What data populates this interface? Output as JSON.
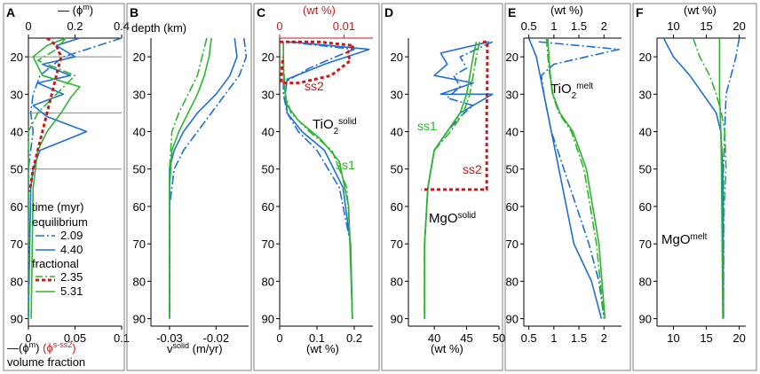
{
  "figure": {
    "panel_letters": [
      "A",
      "B",
      "C",
      "D",
      "E",
      "F"
    ],
    "depth_label": "depth (km)",
    "legend": {
      "title": "time (myr)",
      "group1": "equilibrium",
      "group2": "fractional",
      "entries": [
        "2.09",
        "4.40",
        "2.35",
        "5.31"
      ]
    },
    "annotations": {
      "ss1": "ss1",
      "ss2": "ss2",
      "tio2_base": "TiO",
      "sub2": "2",
      "solid_sup": "solid",
      "mgo_base": "MgO",
      "melt_sup": "melt"
    },
    "colors": {
      "blue": "#1f6fd4",
      "green": "#2db52d",
      "red": "#c8191b",
      "grey": "#888888"
    }
  },
  "chart_data": [
    {
      "panel": "A",
      "type": "line",
      "ylabel": "depth (km)",
      "ylim": [
        15,
        92
      ],
      "yticks": [
        20,
        30,
        40,
        50,
        60,
        70,
        80,
        90
      ],
      "bottom_axis": {
        "lim": [
          0,
          0.1
        ],
        "ticks": [
          0,
          0.05,
          0.1
        ],
        "tick_labels": [
          "0",
          "0.05",
          "0.1"
        ],
        "label_prefix": "—(ϕ",
        "label_sup": "m",
        "label_mid": ")  ",
        "label_red": "(ϕ",
        "label_red_sup": "s-ss2",
        "label_end": ")",
        "label2": "volume fraction"
      },
      "top_axis": {
        "lim": [
          0,
          0.4
        ],
        "ticks": [
          0,
          0.2,
          0.4
        ],
        "tick_labels": [
          "0",
          "0.2",
          "0.4"
        ],
        "label": "— (ϕ",
        "label_sup": "m",
        "label_end": ")"
      },
      "hlines": [
        20,
        35,
        50
      ],
      "series": [
        {
          "name": "2.09",
          "group": "equilibrium",
          "color": "blue",
          "dash": "10,3,2,3",
          "axis": "top",
          "x": [
            0.4,
            0.3,
            0.15,
            0.05,
            0.02,
            0.01,
            0.02,
            0.01,
            0,
            0,
            0,
            0
          ],
          "y": [
            15,
            17,
            20,
            25,
            30,
            35,
            40,
            45,
            50,
            60,
            70,
            90
          ]
        },
        {
          "name": "4.40",
          "group": "equilibrium",
          "color": "blue",
          "dash": "",
          "axis": "top",
          "x": [
            0.22,
            0.12,
            0.2,
            0.06,
            0.18,
            0.04,
            0.15,
            0.02,
            0.08,
            0.25,
            0.05,
            0.02,
            0.01,
            0
          ],
          "y": [
            15,
            17,
            20,
            22,
            25,
            27,
            30,
            33,
            36,
            40,
            45,
            50,
            55,
            90
          ]
        },
        {
          "name": "2.35",
          "group": "fractional",
          "color": "green",
          "dash": "10,3,2,3",
          "axis": "bottom",
          "x": [
            0.04,
            0.03,
            0.01,
            0.05,
            0.03,
            0.01,
            0,
            0,
            0
          ],
          "y": [
            15,
            18,
            21,
            25,
            30,
            35,
            40,
            50,
            90
          ]
        },
        {
          "name": "5.31",
          "group": "fractional",
          "color": "green",
          "dash": "",
          "axis": "bottom",
          "x": [
            0.04,
            0.02,
            0.005,
            0.015,
            0.055,
            0.045,
            0.035,
            0.02,
            0.01,
            0.005,
            0.003
          ],
          "y": [
            15,
            17,
            20,
            25,
            28,
            31,
            35,
            40,
            45,
            55,
            90
          ]
        },
        {
          "name": "s-ss2",
          "group": "solid",
          "color": "red",
          "dash": "4,3",
          "width": 3,
          "axis": "bottom",
          "x": [
            0.02,
            0.03,
            0.035,
            0.03,
            0.025,
            0.02,
            0.015,
            0.01,
            0.005,
            0.002,
            0.001
          ],
          "y": [
            15,
            17,
            20,
            25,
            30,
            35,
            40,
            45,
            50,
            55,
            56
          ]
        }
      ]
    },
    {
      "panel": "B",
      "type": "line",
      "ylim": [
        15,
        92
      ],
      "yticks": [
        20,
        30,
        40,
        50,
        60,
        70,
        80,
        90
      ],
      "xlim": [
        -0.034,
        -0.013
      ],
      "xticks": [
        -0.03,
        -0.02
      ],
      "tick_labels": [
        "-0.03",
        "-0.02"
      ],
      "xlabel": "v",
      "xlabel_sup": "solid",
      "xlabel_unit": " (m/yr)",
      "series": [
        {
          "name": "2.09",
          "color": "blue",
          "dash": "10,3,2,3",
          "x": [
            -0.014,
            -0.0135,
            -0.015,
            -0.018,
            -0.021,
            -0.024,
            -0.027,
            -0.029,
            -0.03,
            -0.03,
            -0.03
          ],
          "y": [
            15,
            20,
            25,
            30,
            35,
            40,
            45,
            50,
            60,
            70,
            90
          ]
        },
        {
          "name": "4.40",
          "color": "blue",
          "dash": "",
          "x": [
            -0.016,
            -0.0155,
            -0.017,
            -0.02,
            -0.024,
            -0.027,
            -0.029,
            -0.03,
            -0.03,
            -0.03
          ],
          "y": [
            15,
            20,
            25,
            30,
            35,
            40,
            45,
            50,
            60,
            90
          ]
        },
        {
          "name": "2.35",
          "color": "green",
          "dash": "10,3,2,3",
          "x": [
            -0.022,
            -0.023,
            -0.024,
            -0.026,
            -0.028,
            -0.0295,
            -0.03,
            -0.03
          ],
          "y": [
            15,
            20,
            25,
            30,
            35,
            40,
            50,
            90
          ]
        },
        {
          "name": "5.31",
          "color": "green",
          "dash": "",
          "x": [
            -0.021,
            -0.0215,
            -0.0225,
            -0.024,
            -0.026,
            -0.028,
            -0.0295,
            -0.03,
            -0.03
          ],
          "y": [
            15,
            20,
            25,
            30,
            35,
            40,
            45,
            55,
            90
          ]
        }
      ]
    },
    {
      "panel": "C",
      "type": "line",
      "ylim": [
        15,
        92
      ],
      "yticks": [
        20,
        30,
        40,
        50,
        60,
        70,
        80,
        90
      ],
      "xlim": [
        0,
        0.25
      ],
      "xticks": [
        0,
        0.1,
        0.2
      ],
      "tick_labels": [
        "0",
        "0.1",
        "0.2"
      ],
      "xlabel": "(wt %)",
      "top_axis": {
        "lim": [
          0,
          0.0145
        ],
        "ticks": [
          0,
          0.01
        ],
        "tick_labels": [
          "0",
          "0.01"
        ],
        "label": "(wt %)",
        "color": "red"
      },
      "series": [
        {
          "name": "2.09",
          "color": "blue",
          "dash": "10,3,2,3",
          "axis": "bottom",
          "x": [
            0.02,
            0.2,
            0.15,
            0.08,
            0.01,
            0.01,
            0.02,
            0.05,
            0.1,
            0.16,
            0.19,
            0.195
          ],
          "y": [
            16,
            18,
            20,
            23,
            27,
            30,
            35,
            40,
            45,
            55,
            70,
            90
          ]
        },
        {
          "name": "4.40",
          "color": "blue",
          "dash": "",
          "axis": "bottom",
          "x": [
            0.03,
            0.24,
            0.12,
            0.02,
            0.015,
            0.02,
            0.06,
            0.12,
            0.17,
            0.19,
            0.195
          ],
          "y": [
            16,
            18,
            22,
            26,
            30,
            35,
            40,
            45,
            55,
            70,
            90
          ]
        },
        {
          "name": "2.35",
          "color": "green",
          "dash": "10,3,2,3",
          "axis": "bottom",
          "x": [
            0.01,
            0.01,
            0.012,
            0.015,
            0.03,
            0.08,
            0.14,
            0.18,
            0.19,
            0.195
          ],
          "y": [
            16,
            20,
            25,
            30,
            35,
            40,
            45,
            55,
            70,
            90
          ]
        },
        {
          "name": "5.31",
          "color": "green",
          "dash": "",
          "axis": "bottom",
          "x": [
            0.01,
            0.01,
            0.012,
            0.02,
            0.05,
            0.11,
            0.16,
            0.185,
            0.195
          ],
          "y": [
            16,
            22,
            28,
            33,
            37,
            42,
            48,
            60,
            90
          ]
        },
        {
          "name": "s-ss2",
          "color": "red",
          "dash": "4,3",
          "width": 3,
          "axis": "top",
          "x": [
            0,
            0.006,
            0.0115,
            0.0105,
            0.011,
            0.0095,
            0.008,
            0.003,
            0.0003,
            0.0003,
            0.0005
          ],
          "y": [
            16,
            16,
            17,
            19,
            21,
            23,
            25,
            27,
            27,
            24,
            20
          ]
        }
      ]
    },
    {
      "panel": "D",
      "type": "line",
      "ylim": [
        15,
        92
      ],
      "yticks": [
        20,
        30,
        40,
        50,
        60,
        70,
        80,
        90
      ],
      "xlim": [
        36,
        50
      ],
      "xticks": [
        40,
        45,
        50
      ],
      "tick_labels": [
        "40",
        "45",
        "50"
      ],
      "xlabel": "(wt %)",
      "series": [
        {
          "name": "2.09",
          "color": "blue",
          "dash": "10,3,2,3",
          "x": [
            49,
            44,
            45,
            43,
            44,
            42,
            46,
            44,
            42,
            40,
            39,
            38.5,
            38.5
          ],
          "y": [
            16,
            20,
            23,
            25,
            28,
            31,
            33,
            36,
            40,
            45,
            55,
            70,
            90
          ]
        },
        {
          "name": "4.40",
          "color": "blue",
          "dash": "",
          "x": [
            48.5,
            41,
            42,
            40,
            46,
            41,
            49,
            44,
            42,
            40,
            39,
            38.5,
            38.5
          ],
          "y": [
            16,
            19,
            22,
            25,
            27,
            30,
            30,
            35,
            40,
            45,
            55,
            70,
            90
          ]
        },
        {
          "name": "2.35",
          "color": "green",
          "dash": "10,3,2,3",
          "x": [
            47,
            46.5,
            46,
            45.5,
            44.5,
            42.5,
            40,
            39,
            38.5,
            38.5
          ],
          "y": [
            16,
            20,
            25,
            30,
            35,
            40,
            45,
            55,
            70,
            90
          ]
        },
        {
          "name": "5.31",
          "color": "green",
          "dash": "",
          "x": [
            46.5,
            46,
            45.5,
            45,
            44,
            42,
            40,
            39,
            38.5,
            38.5
          ],
          "y": [
            16,
            20,
            25,
            30,
            35,
            40,
            45,
            55,
            70,
            90
          ]
        },
        {
          "name": "s-ss2",
          "color": "red",
          "dash": "4,3",
          "width": 3,
          "x": [
            47.5,
            48.2,
            48.2,
            48.1,
            48.1,
            48.1,
            38
          ],
          "y": [
            16,
            16,
            25,
            35,
            45,
            55.5,
            55.5
          ]
        }
      ]
    },
    {
      "panel": "E",
      "type": "line",
      "ylim": [
        15,
        92
      ],
      "yticks": [
        20,
        30,
        40,
        50,
        60,
        70,
        80,
        90
      ],
      "xlim": [
        0.4,
        2.35
      ],
      "xticks": [
        0.5,
        1,
        1.5,
        2
      ],
      "tick_labels": [
        "0.5",
        "1",
        "1.5",
        "2"
      ],
      "top_axis": true,
      "xlabel": "(wt %)",
      "series": [
        {
          "name": "2.09",
          "color": "blue",
          "dash": "10,3,2,3",
          "x": [
            0.7,
            1.5,
            2.3,
            1.0,
            0.75,
            0.8,
            0.95,
            1.2,
            1.45,
            1.7,
            1.9,
            2.0
          ],
          "y": [
            16,
            17,
            18,
            22,
            25,
            30,
            40,
            50,
            60,
            70,
            80,
            90
          ]
        },
        {
          "name": "4.40",
          "color": "blue",
          "dash": "",
          "x": [
            0.5,
            0.65,
            0.8,
            0.95,
            1.1,
            1.25,
            1.4,
            1.75,
            1.95
          ],
          "y": [
            15,
            20,
            30,
            40,
            50,
            60,
            70,
            80,
            90
          ]
        },
        {
          "name": "2.35",
          "color": "green",
          "dash": "10,3,2,3",
          "x": [
            0.85,
            0.88,
            0.92,
            0.97,
            1.1,
            1.35,
            1.6,
            1.85,
            2.0
          ],
          "y": [
            15,
            20,
            25,
            30,
            35,
            40,
            50,
            70,
            90
          ]
        },
        {
          "name": "5.31",
          "color": "green",
          "dash": "",
          "x": [
            0.88,
            0.9,
            0.93,
            0.98,
            1.12,
            1.38,
            1.65,
            1.9,
            2.02
          ],
          "y": [
            15,
            20,
            25,
            30,
            35,
            40,
            50,
            70,
            90
          ]
        }
      ]
    },
    {
      "panel": "F",
      "type": "line",
      "ylim": [
        15,
        92
      ],
      "yticks": [
        20,
        30,
        40,
        50,
        60,
        70,
        80,
        90
      ],
      "xlim": [
        7.5,
        21
      ],
      "xticks": [
        10,
        15,
        20
      ],
      "tick_labels": [
        "10",
        "15",
        "20"
      ],
      "top_axis": true,
      "xlabel": "(wt %)",
      "series": [
        {
          "name": "2.09",
          "color": "blue",
          "dash": "10,3,2,3",
          "x": [
            20,
            19.5,
            18,
            17.8,
            17.6,
            17.6
          ],
          "y": [
            15,
            20,
            30,
            40,
            50,
            90
          ]
        },
        {
          "name": "4.40",
          "color": "blue",
          "dash": "",
          "x": [
            8.5,
            10,
            12.5,
            14.5,
            16.5,
            17.2,
            17.5,
            17.6
          ],
          "y": [
            15,
            20,
            25,
            30,
            35,
            40,
            50,
            90
          ]
        },
        {
          "name": "2.35",
          "color": "green",
          "dash": "10,3,2,3",
          "x": [
            13,
            14,
            15.5,
            16.5,
            17.3,
            17.8,
            18,
            17.7,
            17.6
          ],
          "y": [
            15,
            20,
            25,
            30,
            35,
            40,
            50,
            60,
            90
          ]
        },
        {
          "name": "5.31",
          "color": "green",
          "dash": "",
          "x": [
            17,
            17,
            17,
            17.2,
            17.3,
            17.4,
            17.5
          ],
          "y": [
            15,
            20,
            30,
            40,
            50,
            70,
            90
          ]
        }
      ]
    }
  ]
}
